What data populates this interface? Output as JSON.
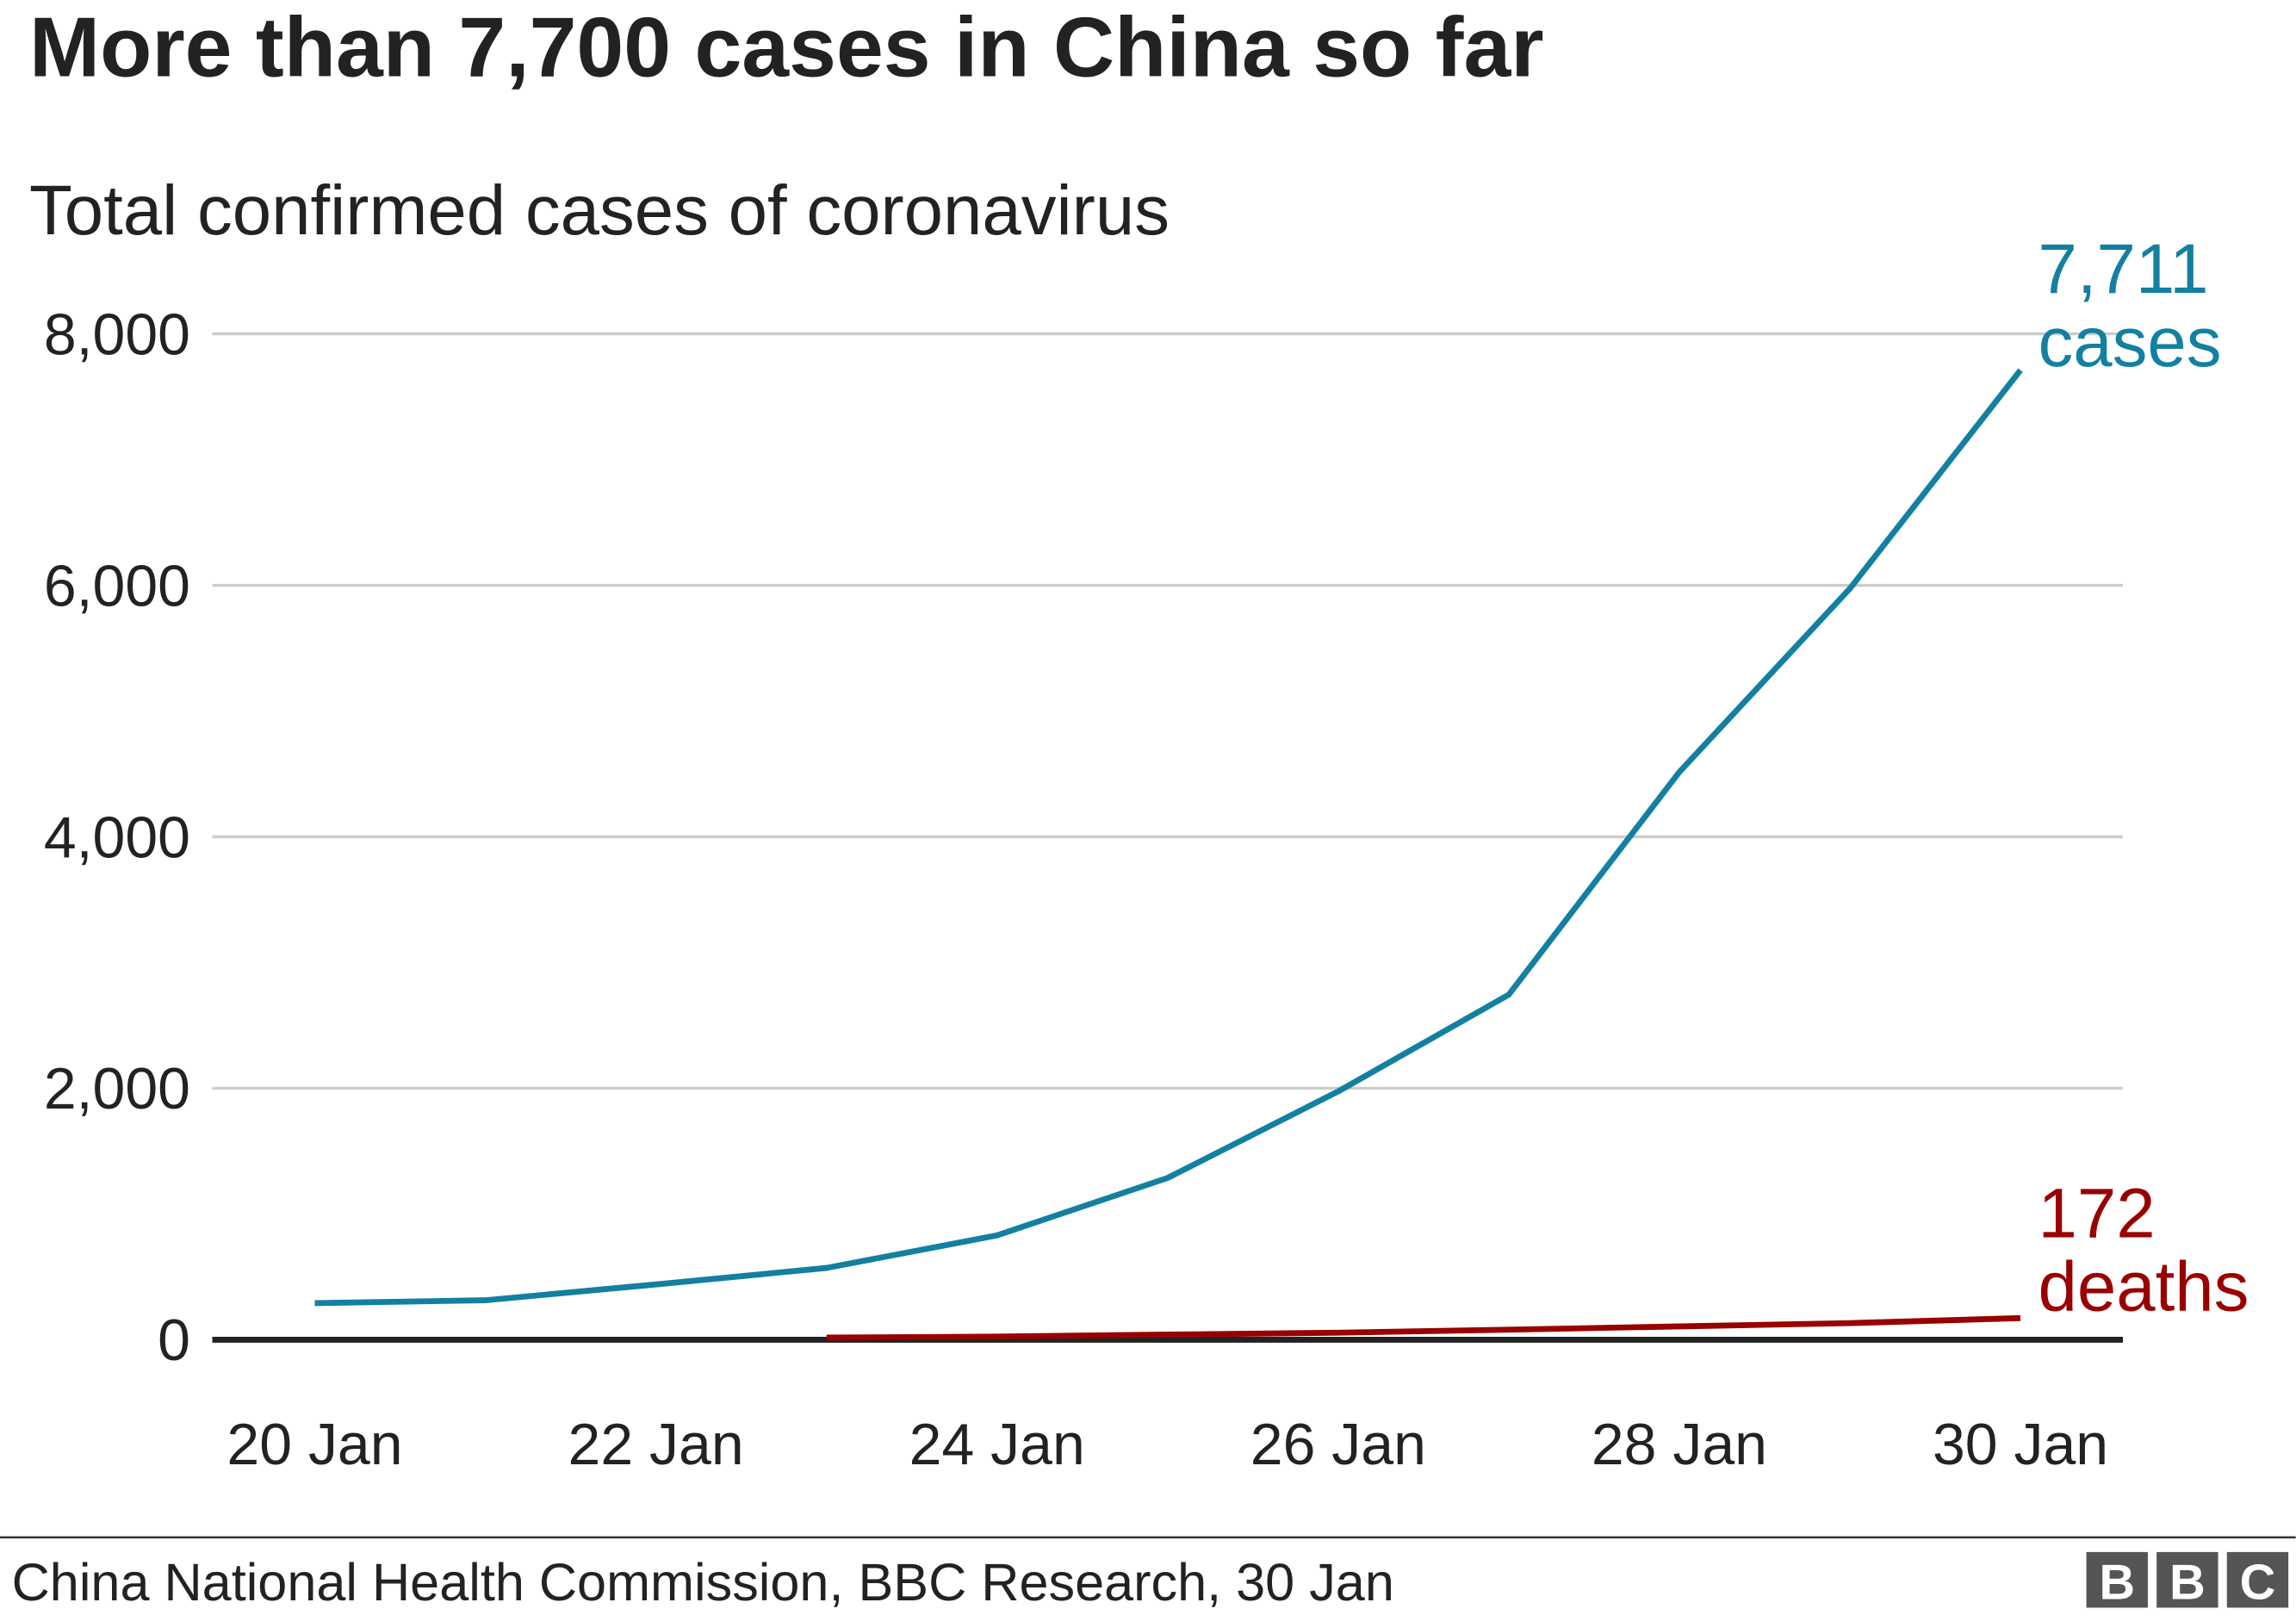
{
  "chart_data": {
    "type": "line",
    "title": "More than 7,700 cases in China so far",
    "subtitle": "Total confirmed cases of coronavirus",
    "categories": [
      "20 Jan",
      null,
      "22 Jan",
      null,
      "24 Jan",
      null,
      "26 Jan",
      null,
      "28 Jan",
      null,
      "30 Jan"
    ],
    "series": [
      {
        "name": "cases",
        "color": "#1380a1",
        "values": [
          291,
          314,
          440,
          571,
          830,
          1287,
          1975,
          2744,
          4515,
          5974,
          7711
        ],
        "value_labels": [
          null,
          null,
          null,
          null,
          null,
          null,
          null,
          null,
          null,
          null,
          "7,711"
        ]
      },
      {
        "name": "deaths",
        "color": "#990000",
        "values": [
          null,
          null,
          null,
          17,
          25,
          41,
          56,
          80,
          106,
          132,
          172
        ],
        "value_labels": [
          null,
          null,
          null,
          null,
          null,
          null,
          null,
          null,
          null,
          null,
          "172"
        ]
      }
    ],
    "ylim": [
      0,
      8000
    ],
    "yticks": [
      0,
      {
        "value": 2000,
        "label": "2,000"
      },
      {
        "value": 4000,
        "label": "4,000"
      },
      {
        "value": 6000,
        "label": "6,000"
      },
      {
        "value": 8000,
        "label": "8,000"
      }
    ],
    "grid": true,
    "source": "China National Health Commission, BBC Research, 30 Jan",
    "logo": [
      "B",
      "B",
      "C"
    ]
  }
}
